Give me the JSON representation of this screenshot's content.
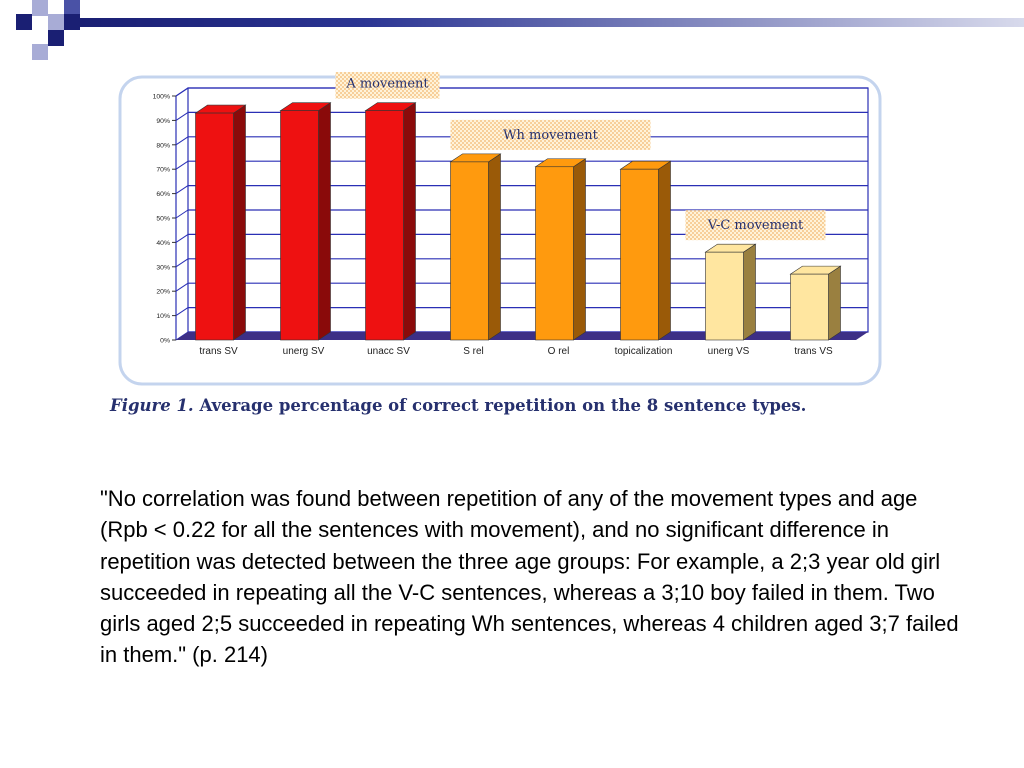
{
  "decoration": {
    "colors": {
      "dark": "#1a1f73",
      "mid": "#4a52a6",
      "light": "#a8acd6"
    }
  },
  "chart_data": {
    "type": "bar",
    "categories": [
      "trans SV",
      "unerg SV",
      "unacc SV",
      "S rel",
      "O rel",
      "topicalization",
      "unerg VS",
      "trans VS"
    ],
    "values": [
      93,
      94,
      94,
      73,
      71,
      70,
      36,
      27
    ],
    "y_ticks": [
      "0%",
      "10%",
      "20%",
      "30%",
      "40%",
      "50%",
      "60%",
      "70%",
      "80%",
      "90%",
      "100%"
    ],
    "ylim": [
      0,
      100
    ],
    "grid": true,
    "groups": [
      {
        "label": "A movement",
        "members": [
          0,
          1,
          2
        ],
        "color": "#ee1111",
        "side_color": "#8a0a0a"
      },
      {
        "label": "Wh movement",
        "members": [
          3,
          4,
          5
        ],
        "color": "#ff9a0e",
        "side_color": "#9a5a08"
      },
      {
        "label": "V-C movement",
        "members": [
          6,
          7
        ],
        "color": "#ffe6a0",
        "side_color": "#9a8040"
      }
    ],
    "floor_color": "#3d2f86",
    "grid_color": "#2a2fb5",
    "frame_color": "#c4d4ee"
  },
  "caption": {
    "figure_label": "Figure 1.",
    "text": "Average percentage of correct repetition on the 8 sentence types."
  },
  "body_text": "\"No correlation was found between repetition of any of the movement types and age (Rpb < 0.22 for all the sentences with movement), and no significant difference in repetition was detected between the three age groups: For example, a 2;3 year old girl succeeded in repeating all the V-C sentences, whereas a 3;10 boy failed in them. Two girls aged 2;5 succeeded in repeating Wh sentences, whereas 4 children aged 3;7 failed in them.\" (p. 214)"
}
